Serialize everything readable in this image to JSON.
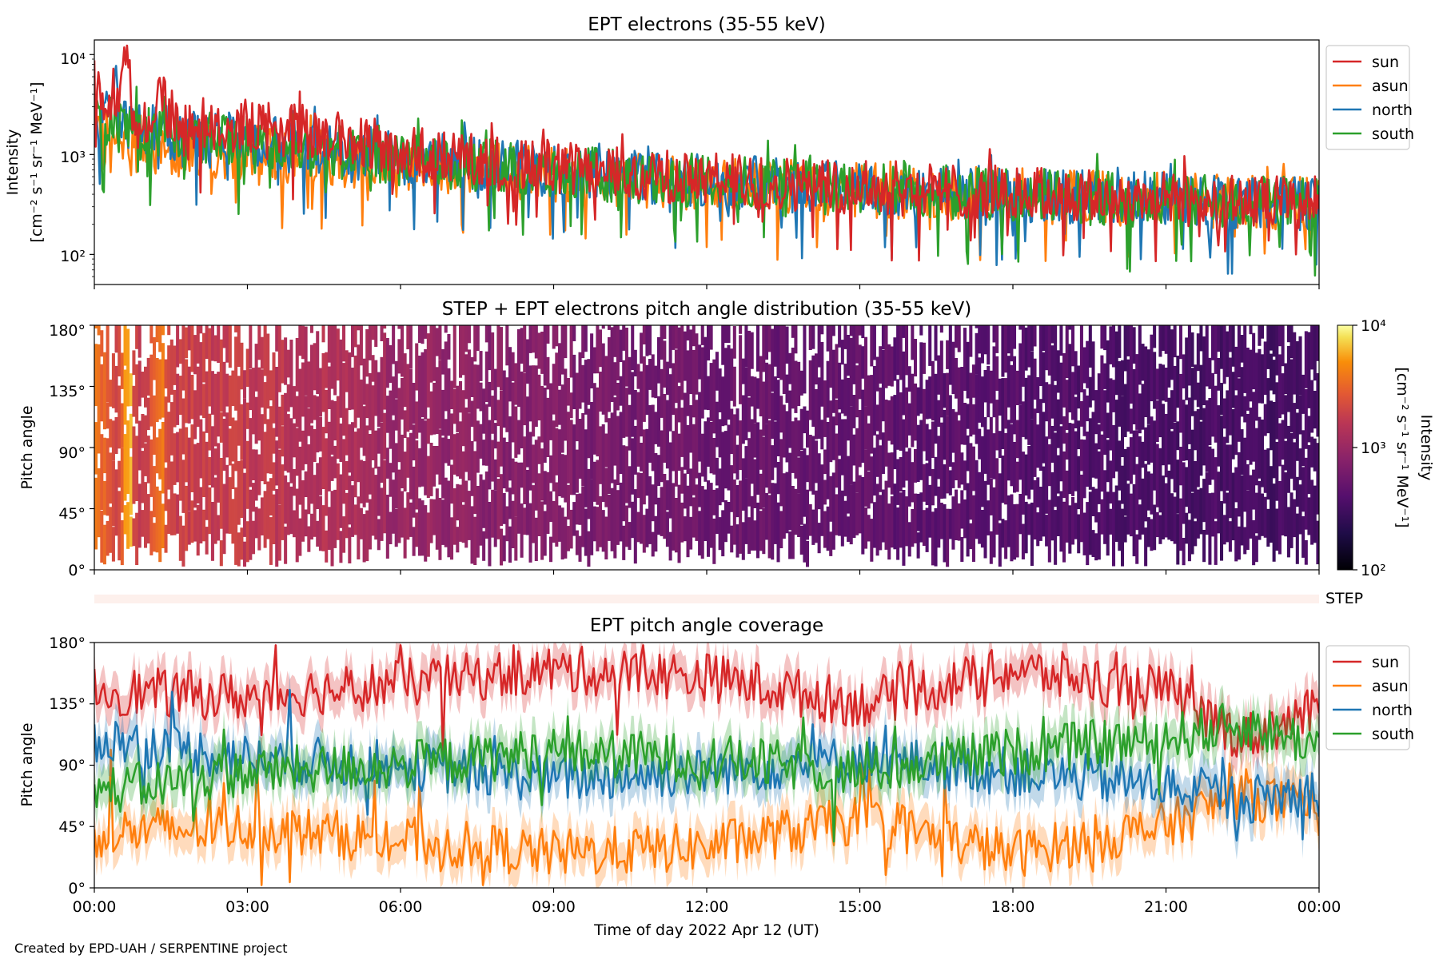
{
  "figure": {
    "credit": "Created by EPD-UAH / SERPENTINE project",
    "xlabel": "Time of day 2022 Apr 12 (UT)",
    "xticks": [
      "00:00",
      "03:00",
      "06:00",
      "09:00",
      "12:00",
      "15:00",
      "18:00",
      "21:00",
      "00:00"
    ],
    "step_label": "STEP"
  },
  "chart_data": [
    {
      "type": "line",
      "title": "EPT electrons (35-55 keV)",
      "ylabel": [
        "Intensity",
        "[cm⁻² s⁻¹ sr⁻¹ MeV⁻¹]"
      ],
      "yscale": "log",
      "ylim": [
        50,
        14000
      ],
      "yticks": [
        "10²",
        "10³",
        "10⁴"
      ],
      "xlim_hours": [
        0,
        24
      ],
      "legend_position": "outside-right-top",
      "series": [
        {
          "name": "sun",
          "color": "#d62728",
          "x": [
            0,
            0.1,
            0.3,
            0.5,
            0.66,
            0.72,
            0.8,
            1,
            1.3,
            1.4,
            1.6,
            2,
            3,
            4,
            5,
            6,
            8,
            10,
            12,
            14,
            16,
            18,
            20,
            22,
            24
          ],
          "y": [
            5800,
            4200,
            2800,
            2400,
            9800,
            3000,
            2200,
            2100,
            4800,
            2600,
            2200,
            2100,
            1900,
            1700,
            1400,
            1050,
            800,
            650,
            560,
            500,
            450,
            410,
            370,
            340,
            320
          ]
        },
        {
          "name": "asun",
          "color": "#ff7f0e",
          "x": [
            0,
            0.3,
            1,
            2,
            3,
            4,
            6,
            8,
            10,
            12,
            14,
            16,
            18,
            20,
            22,
            24
          ],
          "y": [
            1300,
            1200,
            1150,
            1100,
            1050,
            950,
            800,
            680,
            580,
            510,
            460,
            420,
            390,
            360,
            340,
            320
          ]
        },
        {
          "name": "north",
          "color": "#1f77b4",
          "x": [
            0,
            0.3,
            0.35,
            0.6,
            1,
            2,
            3,
            4,
            6,
            8,
            10,
            12,
            14,
            16,
            18,
            20,
            22,
            24
          ],
          "y": [
            2500,
            2200,
            4800,
            2000,
            1700,
            1550,
            1400,
            1200,
            950,
            770,
            640,
            540,
            480,
            440,
            400,
            370,
            340,
            320
          ]
        },
        {
          "name": "south",
          "color": "#2ca02c",
          "x": [
            0,
            0.3,
            1,
            2,
            3,
            4,
            6,
            8,
            10,
            12,
            14,
            16,
            18,
            20,
            22,
            24
          ],
          "y": [
            2300,
            2000,
            1600,
            1450,
            1350,
            1150,
            900,
            740,
            620,
            530,
            470,
            430,
            390,
            360,
            340,
            320
          ]
        }
      ]
    },
    {
      "type": "heatmap",
      "title": "STEP + EPT electrons pitch angle distribution (35-55 keV)",
      "ylabel": "Pitch angle",
      "ylim": [
        0,
        180
      ],
      "yticks": [
        "0°",
        "45°",
        "90°",
        "135°",
        "180°"
      ],
      "xlim_hours": [
        0,
        24
      ],
      "colormap": "inferno",
      "colorbar": {
        "label": [
          "Intensity",
          "[cm⁻² s⁻¹ sr⁻¹ MeV⁻¹]"
        ],
        "scale": "log",
        "range": [
          100,
          10000
        ],
        "ticks": [
          "10²",
          "10³",
          "10⁴"
        ]
      }
    },
    {
      "type": "line",
      "title": "EPT pitch angle coverage",
      "ylabel": "Pitch angle",
      "ylim": [
        0,
        180
      ],
      "yticks": [
        "0°",
        "45°",
        "90°",
        "135°",
        "180°"
      ],
      "xlim_hours": [
        0,
        24
      ],
      "legend_position": "outside-right-top",
      "series": [
        {
          "name": "sun",
          "color": "#d62728",
          "x": [
            0,
            3,
            6,
            9,
            12,
            15,
            18,
            21,
            22.5,
            24
          ],
          "y": [
            145,
            140,
            150,
            160,
            155,
            135,
            160,
            145,
            110,
            130
          ]
        },
        {
          "name": "asun",
          "color": "#ff7f0e",
          "x": [
            0,
            3,
            6,
            9,
            12,
            15,
            18,
            21,
            22.5,
            24
          ],
          "y": [
            40,
            45,
            35,
            25,
            30,
            50,
            25,
            45,
            70,
            55
          ]
        },
        {
          "name": "north",
          "color": "#1f77b4",
          "x": [
            0,
            3,
            6,
            9,
            12,
            15,
            18,
            21,
            22.5,
            24
          ],
          "y": [
            110,
            95,
            90,
            80,
            85,
            95,
            85,
            75,
            65,
            70
          ]
        },
        {
          "name": "south",
          "color": "#2ca02c",
          "x": [
            0,
            3,
            6,
            9,
            12,
            15,
            18,
            21,
            22.5,
            24
          ],
          "y": [
            70,
            85,
            90,
            100,
            95,
            85,
            100,
            110,
            120,
            105
          ]
        }
      ]
    }
  ]
}
